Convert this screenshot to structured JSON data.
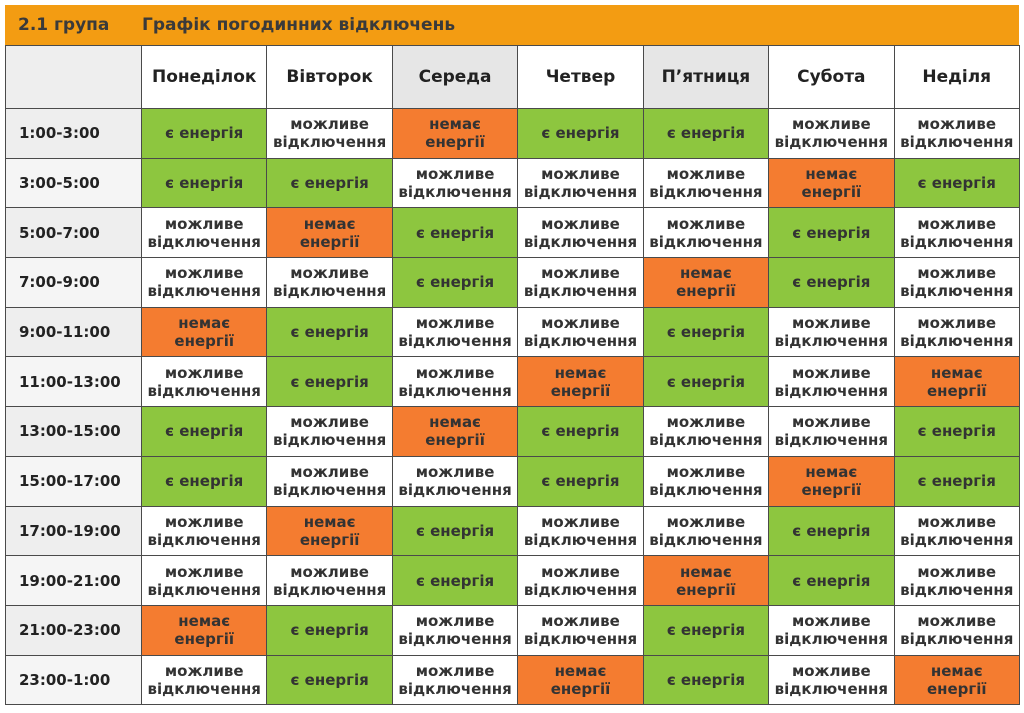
{
  "header": {
    "group": "2.1 група",
    "title": "Графік погодинних відключень",
    "bg_color": "#f39c12"
  },
  "days": [
    "Понеділок",
    "Вівторок",
    "Середа",
    "Четвер",
    "П’ятниця",
    "Субота",
    "Неділя"
  ],
  "legend_text": {
    "on": "є енергія",
    "maybe_line1": "можливе",
    "maybe_line2": "відключення",
    "off_line1": "немає",
    "off_line2": "енергії"
  },
  "colors": {
    "on": "#8dc63f",
    "off": "#f47c30",
    "maybe": "#ffffff"
  },
  "rows": [
    {
      "time": "1:00-3:00",
      "cells": [
        "on",
        "maybe",
        "off",
        "on",
        "on",
        "maybe",
        "maybe"
      ]
    },
    {
      "time": "3:00-5:00",
      "cells": [
        "on",
        "on",
        "maybe",
        "maybe",
        "maybe",
        "off",
        "on"
      ]
    },
    {
      "time": "5:00-7:00",
      "cells": [
        "maybe",
        "off",
        "on",
        "maybe",
        "maybe",
        "on",
        "maybe"
      ]
    },
    {
      "time": "7:00-9:00",
      "cells": [
        "maybe",
        "maybe",
        "on",
        "maybe",
        "off",
        "on",
        "maybe"
      ]
    },
    {
      "time": "9:00-11:00",
      "cells": [
        "off",
        "on",
        "maybe",
        "maybe",
        "on",
        "maybe",
        "maybe"
      ]
    },
    {
      "time": "11:00-13:00",
      "cells": [
        "maybe",
        "on",
        "maybe",
        "off",
        "on",
        "maybe",
        "off"
      ]
    },
    {
      "time": "13:00-15:00",
      "cells": [
        "on",
        "maybe",
        "off",
        "on",
        "maybe",
        "maybe",
        "on"
      ]
    },
    {
      "time": "15:00-17:00",
      "cells": [
        "on",
        "maybe",
        "maybe",
        "on",
        "maybe",
        "off",
        "on"
      ]
    },
    {
      "time": "17:00-19:00",
      "cells": [
        "maybe",
        "off",
        "on",
        "maybe",
        "maybe",
        "on",
        "maybe"
      ]
    },
    {
      "time": "19:00-21:00",
      "cells": [
        "maybe",
        "maybe",
        "on",
        "maybe",
        "off",
        "on",
        "maybe"
      ]
    },
    {
      "time": "21:00-23:00",
      "cells": [
        "off",
        "on",
        "maybe",
        "maybe",
        "on",
        "maybe",
        "maybe"
      ]
    },
    {
      "time": "23:00-1:00",
      "cells": [
        "maybe",
        "on",
        "maybe",
        "off",
        "on",
        "maybe",
        "off"
      ]
    }
  ]
}
